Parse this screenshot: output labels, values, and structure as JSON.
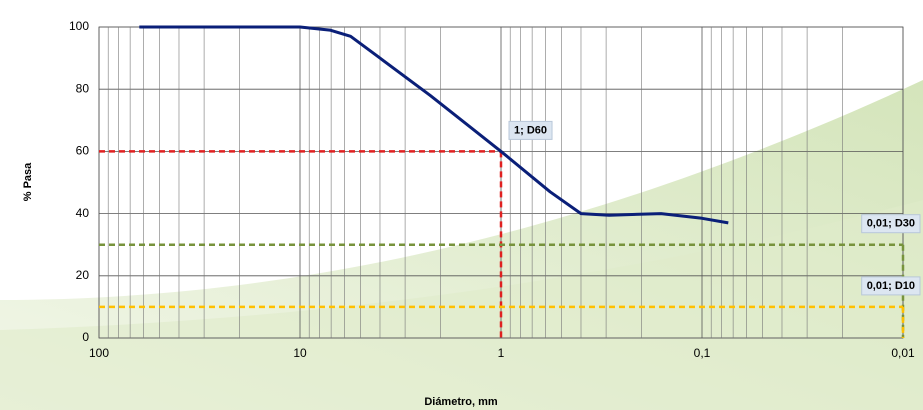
{
  "chart_data": {
    "type": "line",
    "x_label": "Diámetro, mm",
    "y_label": "% Pasa",
    "log_x": true,
    "grid": true,
    "xlim": [
      100,
      0.01
    ],
    "ylim": [
      0,
      100
    ],
    "xticks": [
      {
        "value": 100,
        "label": "100"
      },
      10,
      1,
      {
        "value": 0.1,
        "label": "0,1"
      },
      {
        "value": 0.01,
        "label": "0,01"
      }
    ],
    "yticks": [
      0,
      20,
      40,
      60,
      80,
      100
    ],
    "x": [
      63,
      10,
      7.1,
      5.6,
      4,
      2.25,
      1,
      0.57,
      0.4,
      0.29,
      0.16,
      0.1,
      0.074
    ],
    "series": [
      {
        "color": "#0a1f78",
        "values": [
          100,
          100,
          99,
          97,
          90,
          78,
          60,
          47,
          40,
          39.5,
          40,
          38.5,
          37
        ]
      }
    ],
    "reference_lines": [
      {
        "label": "1; D60",
        "x": 1,
        "y": 60,
        "color": "#e02020"
      },
      {
        "label": "0,01; D30",
        "x": 0.01,
        "y": 30,
        "color": "#77933c"
      },
      {
        "label": "0,01; D10",
        "x": 0.01,
        "y": 10,
        "color": "#ffc000"
      }
    ]
  }
}
